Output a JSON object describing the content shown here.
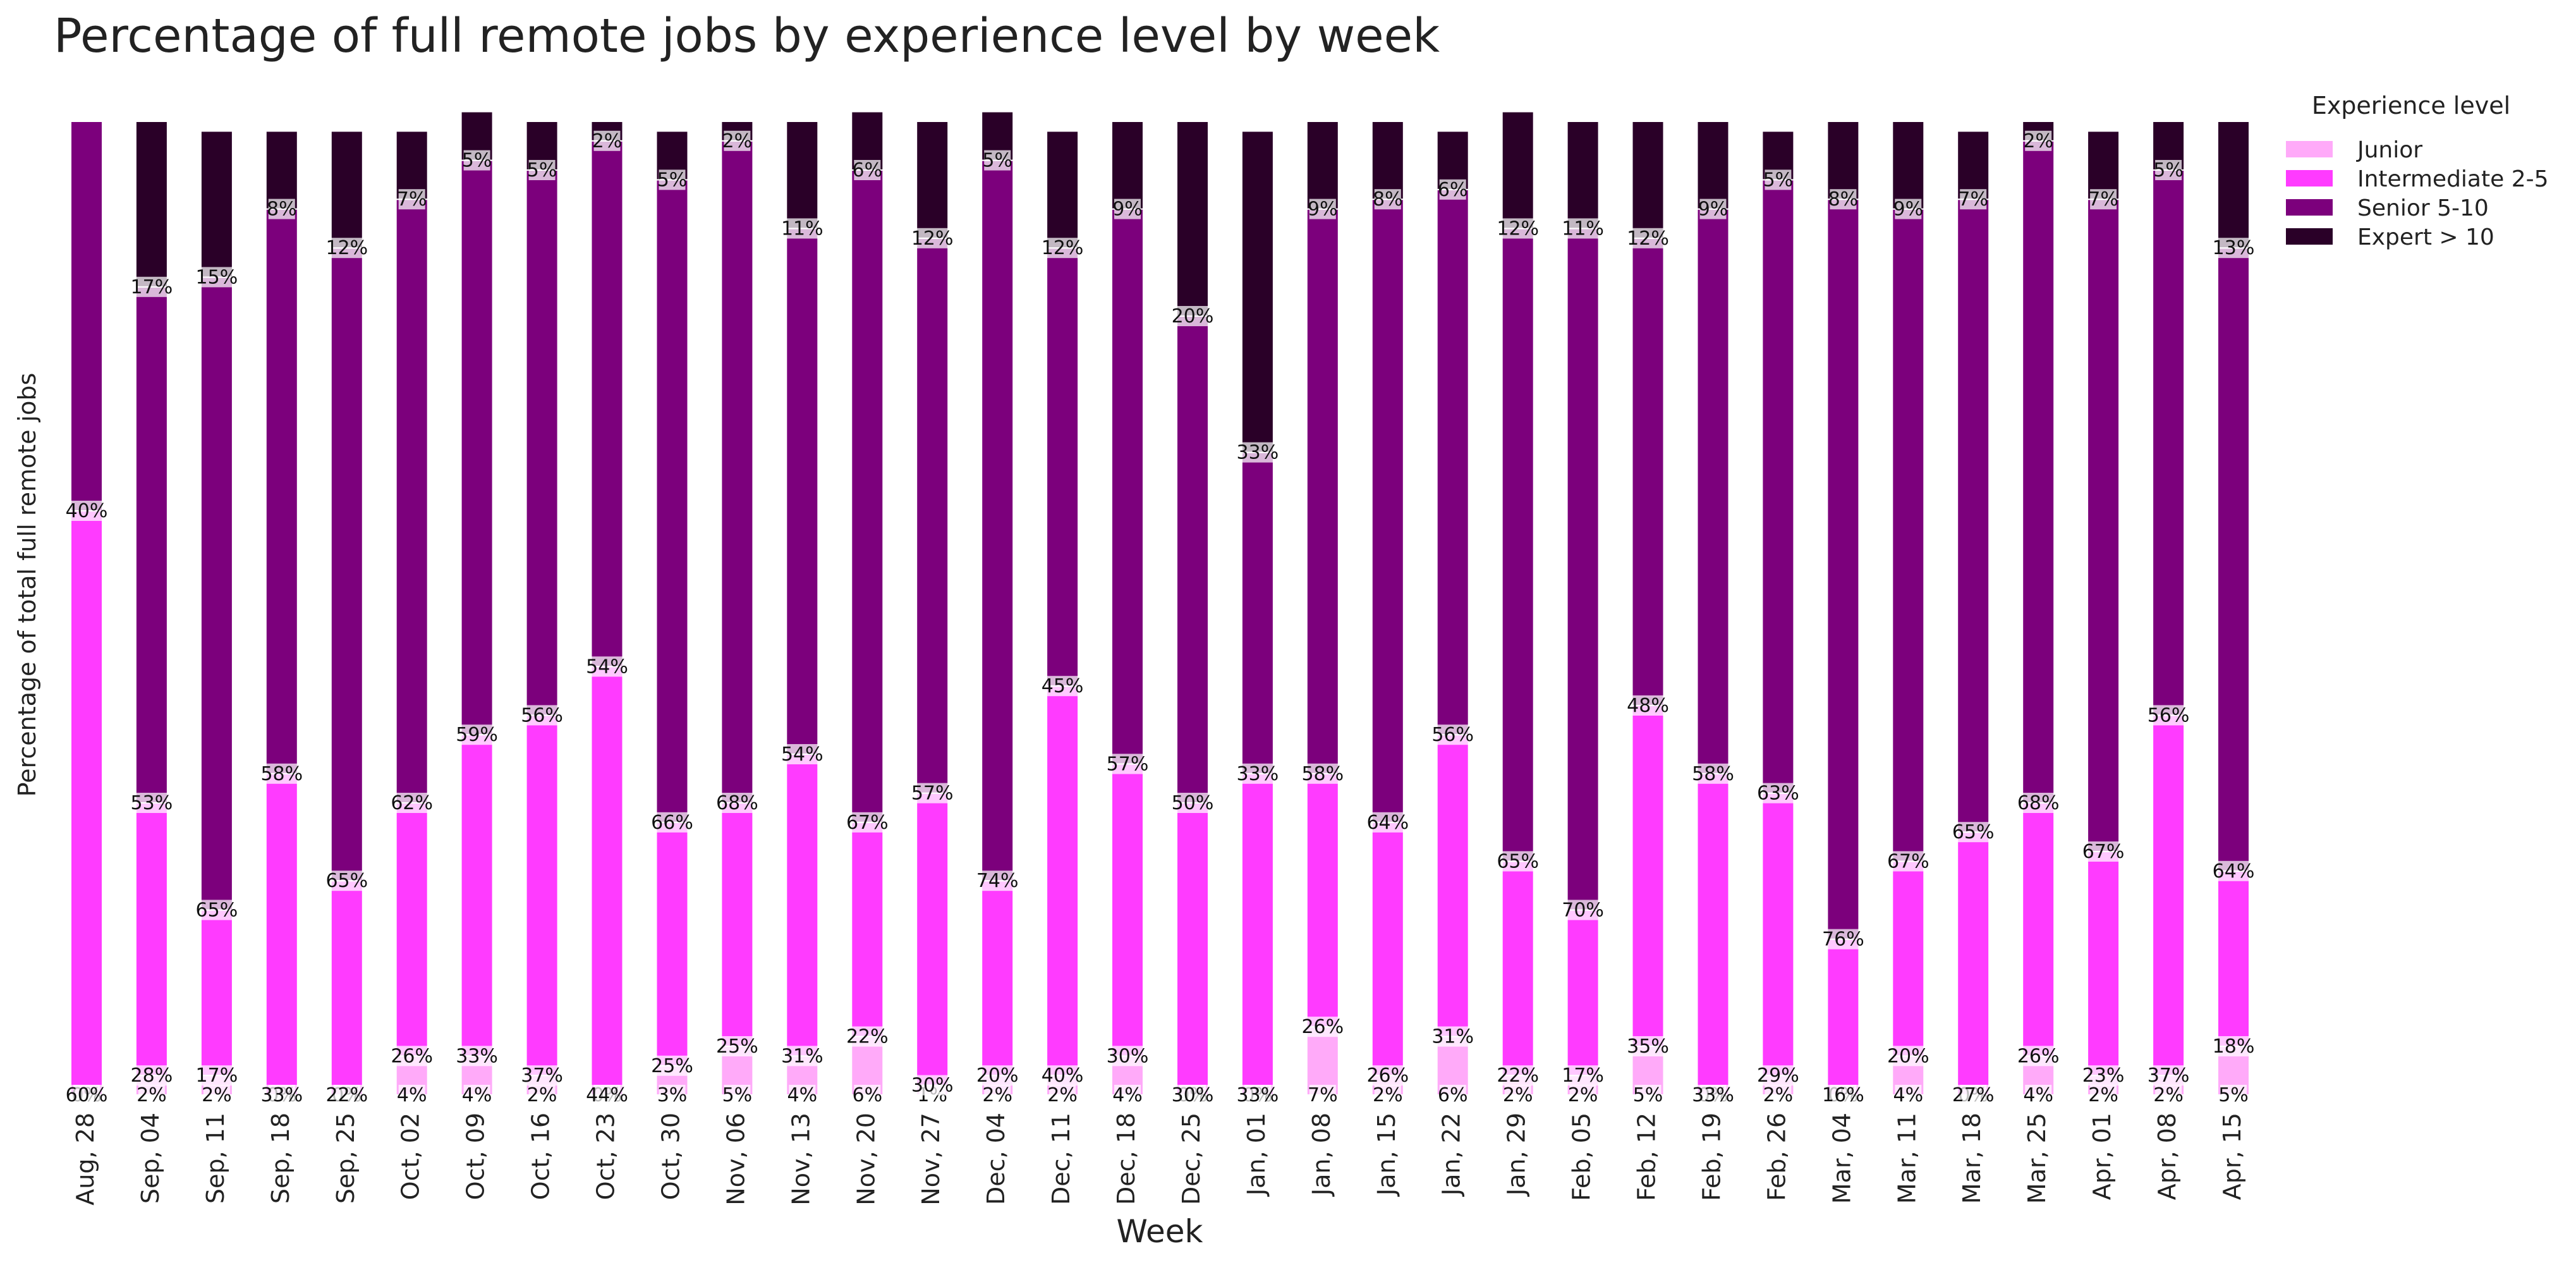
{
  "chart_data": {
    "type": "bar",
    "stacked": true,
    "normalized_percent": true,
    "title": "Percentage of full remote jobs by experience level by week",
    "xlabel": "Week",
    "ylabel": "Percentage of total full remote jobs",
    "ylim": [
      0,
      100
    ],
    "grid": false,
    "legend": {
      "title": "Experience level",
      "position": "right-top"
    },
    "categories": [
      "Aug, 28",
      "Sep, 04",
      "Sep, 11",
      "Sep, 18",
      "Sep, 25",
      "Oct, 02",
      "Oct, 09",
      "Oct, 16",
      "Oct, 23",
      "Oct, 30",
      "Nov, 06",
      "Nov, 13",
      "Nov, 20",
      "Nov, 27",
      "Dec, 04",
      "Dec, 11",
      "Dec, 18",
      "Dec, 25",
      "Jan, 01",
      "Jan, 08",
      "Jan, 15",
      "Jan, 22",
      "Jan, 29",
      "Feb, 05",
      "Feb, 12",
      "Feb, 19",
      "Feb, 26",
      "Mar, 04",
      "Mar, 11",
      "Mar, 18",
      "Mar, 25",
      "Apr, 01",
      "Apr, 08",
      "Apr, 15"
    ],
    "series": [
      {
        "name": "Junior",
        "color": "#ffaaf9",
        "values": [
          0,
          2,
          2,
          0,
          0,
          4,
          4,
          2,
          0,
          3,
          5,
          4,
          6,
          1,
          2,
          2,
          4,
          0,
          0,
          7,
          2,
          6,
          2,
          2,
          5,
          0,
          2,
          0,
          4,
          0,
          4,
          2,
          2,
          5
        ]
      },
      {
        "name": "Intermediate 2-5",
        "color": "#ff3bff",
        "values": [
          60,
          28,
          17,
          33,
          22,
          26,
          33,
          37,
          44,
          25,
          25,
          31,
          22,
          30,
          20,
          40,
          30,
          30,
          33,
          26,
          26,
          31,
          22,
          17,
          35,
          33,
          29,
          16,
          20,
          27,
          26,
          23,
          37,
          18
        ]
      },
      {
        "name": "Senior 5-10",
        "color": "#7c007c",
        "values": [
          40,
          53,
          65,
          58,
          65,
          62,
          59,
          56,
          54,
          66,
          68,
          54,
          67,
          57,
          74,
          45,
          57,
          50,
          33,
          58,
          64,
          56,
          65,
          70,
          48,
          58,
          63,
          76,
          67,
          65,
          68,
          67,
          56,
          64
        ]
      },
      {
        "name": "Expert > 10",
        "color": "#2a0028",
        "values": [
          0,
          17,
          15,
          8,
          12,
          7,
          5,
          5,
          2,
          5,
          2,
          11,
          6,
          12,
          5,
          12,
          9,
          20,
          33,
          9,
          8,
          6,
          12,
          11,
          12,
          9,
          5,
          8,
          9,
          7,
          2,
          7,
          5,
          13
        ]
      }
    ],
    "data_labels": {
      "Junior": [
        "0%",
        "2%",
        "2%",
        "0%",
        "0%",
        "4%",
        "4%",
        "2%",
        "0%",
        "3%",
        "5%",
        "4%",
        "6%",
        "1%",
        "2%",
        "2%",
        "4%",
        "0%",
        "0%",
        "7%",
        "2%",
        "6%",
        "2%",
        "2%",
        "5%",
        "0%",
        "2%",
        "0%",
        "4%",
        "0%",
        "4%",
        "2%",
        "2%",
        "5%"
      ],
      "Intermediate 2-5": [
        "60%",
        "28%",
        "17%",
        "33%",
        "22%",
        "26%",
        "33%",
        "37%",
        "44%",
        "25%",
        "25%",
        "31%",
        "22%",
        "30%",
        "20%",
        "40%",
        "30%",
        "30%",
        "33%",
        "26%",
        "26%",
        "31%",
        "22%",
        "17%",
        "35%",
        "33%",
        "29%",
        "16%",
        "20%",
        "27%",
        "26%",
        "23%",
        "37%",
        "18%"
      ],
      "Senior 5-10": [
        "40%",
        "53%",
        "65%",
        "58%",
        "65%",
        "62%",
        "59%",
        "56%",
        "54%",
        "66%",
        "68%",
        "54%",
        "67%",
        "57%",
        "74%",
        "45%",
        "57%",
        "50%",
        "33%",
        "58%",
        "64%",
        "56%",
        "65%",
        "70%",
        "48%",
        "58%",
        "63%",
        "76%",
        "67%",
        "65%",
        "68%",
        "67%",
        "56%",
        "64%"
      ],
      "Expert > 10": [
        "",
        "17%",
        "15%",
        "8%",
        "12%",
        "7%",
        "5%",
        "5%",
        "2%",
        "5%",
        "2%",
        "11%",
        "6%",
        "12%",
        "5%",
        "12%",
        "9%",
        "20%",
        "33%",
        "9%",
        "8%",
        "6%",
        "12%",
        "11%",
        "12%",
        "9%",
        "5%",
        "8%",
        "9%",
        "7%",
        "2%",
        "7%",
        "5%",
        "13%"
      ]
    }
  }
}
